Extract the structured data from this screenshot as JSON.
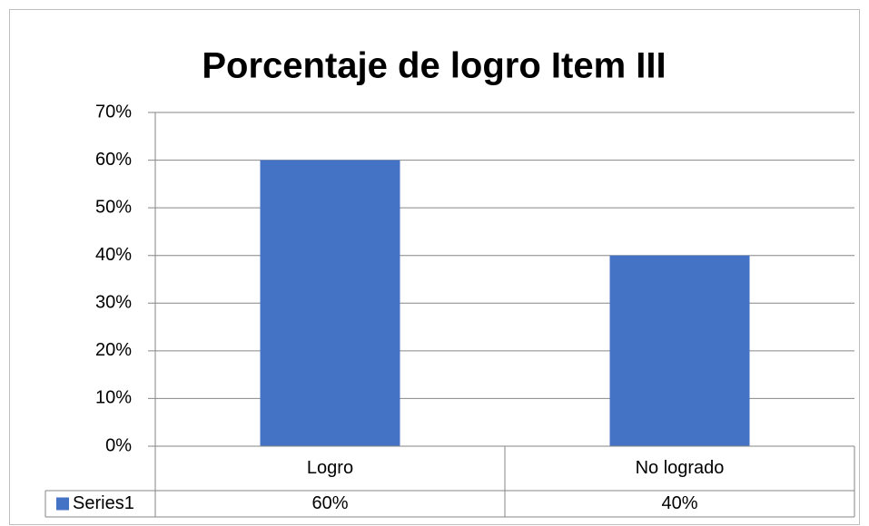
{
  "chart_data": {
    "type": "bar",
    "title": "Porcentaje de logro Item III",
    "categories": [
      "Logro",
      "No logrado"
    ],
    "series": [
      {
        "name": "Series1",
        "color": "#4472c4",
        "values": [
          60,
          40
        ],
        "value_labels": [
          "60%",
          "40%"
        ]
      }
    ],
    "ylim": [
      0,
      70
    ],
    "yticks": [
      {
        "value": 0,
        "label": "0%"
      },
      {
        "value": 10,
        "label": "10%"
      },
      {
        "value": 20,
        "label": "20%"
      },
      {
        "value": 30,
        "label": "30%"
      },
      {
        "value": 40,
        "label": "40%"
      },
      {
        "value": 50,
        "label": "50%"
      },
      {
        "value": 60,
        "label": "60%"
      },
      {
        "value": 70,
        "label": "70%"
      }
    ],
    "grid": true,
    "data_table": true
  }
}
